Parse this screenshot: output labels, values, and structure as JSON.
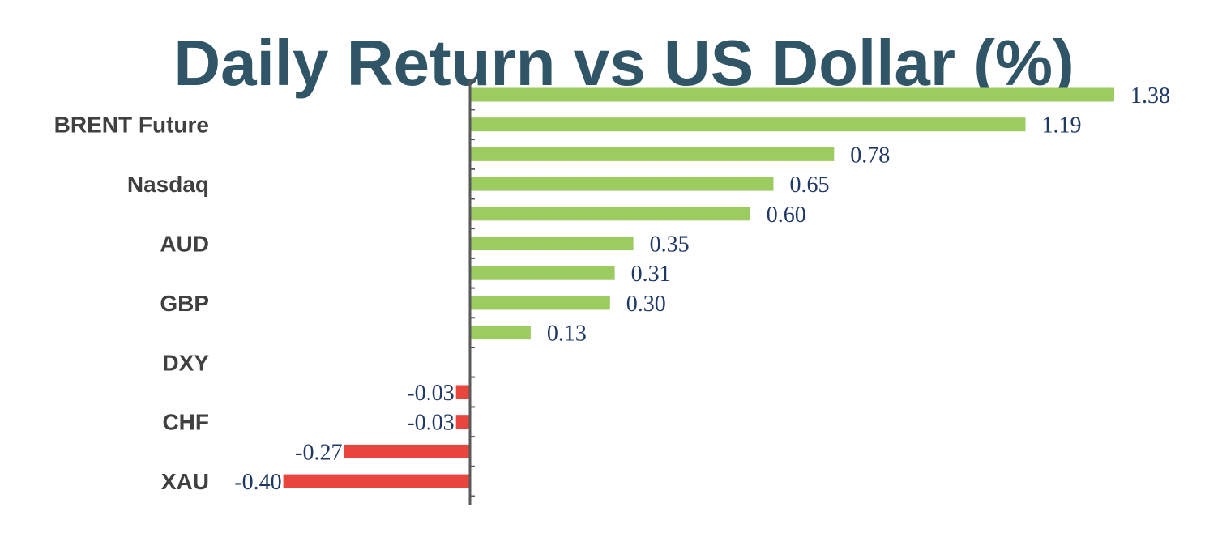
{
  "chart_data": {
    "type": "bar",
    "orientation": "horizontal",
    "title": "Daily Return vs US Dollar (%)",
    "xlabel": "",
    "ylabel": "",
    "categories": [
      "",
      "BRENT Future",
      "",
      "Nasdaq",
      "",
      "AUD",
      "",
      "GBP",
      "",
      "DXY",
      "",
      "CHF",
      "",
      "XAU"
    ],
    "values": [
      1.38,
      1.19,
      0.78,
      0.65,
      0.6,
      0.35,
      0.31,
      0.3,
      0.13,
      0,
      -0.03,
      -0.03,
      -0.27,
      -0.4
    ],
    "value_labels": [
      "1.38",
      "1.19",
      "0.78",
      "0.65",
      "0.60",
      "0.35",
      "0.31",
      "0.30",
      "0.13",
      "",
      "-0.03",
      "-0.03",
      "-0.27",
      "-0.40"
    ],
    "xlim": [
      -0.4,
      1.38
    ],
    "grid": false,
    "legend": "none",
    "colors": {
      "positive": "#9ccb5f",
      "negative": "#e8453c",
      "axis": "#595959",
      "title": "#2f5567",
      "category_text": "#404040",
      "value_text": "#1f3864"
    }
  }
}
